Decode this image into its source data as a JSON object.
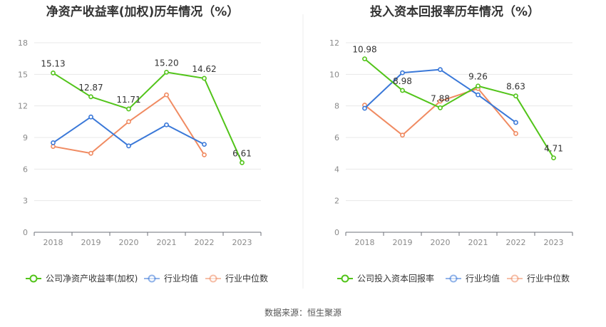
{
  "chart_data": [
    {
      "type": "line",
      "title": "净资产收益率(加权)历年情况（%）",
      "categories": [
        "2018",
        "2019",
        "2020",
        "2021",
        "2022",
        "2023"
      ],
      "ylim": [
        0,
        18
      ],
      "yticks": [
        0,
        3,
        6,
        9,
        12,
        15,
        18
      ],
      "grid": true,
      "legend_position": "bottom",
      "series": [
        {
          "name": "公司净资产收益率(加权)",
          "color": "#52c41a",
          "labeled": true,
          "values": [
            15.13,
            12.87,
            11.71,
            15.2,
            14.62,
            6.61
          ]
        },
        {
          "name": "行业均值",
          "color": "#3a78d8",
          "labeled": false,
          "values": [
            8.5,
            10.95,
            8.2,
            10.2,
            8.35,
            null
          ]
        },
        {
          "name": "行业中位数",
          "color": "#f08b62",
          "labeled": false,
          "values": [
            8.15,
            7.5,
            10.5,
            13.05,
            7.35,
            null
          ]
        }
      ]
    },
    {
      "type": "line",
      "title": "投入资本回报率历年情况（%）",
      "categories": [
        "2018",
        "2019",
        "2020",
        "2021",
        "2022",
        "2023"
      ],
      "ylim": [
        0,
        12
      ],
      "yticks": [
        0,
        2,
        4,
        6,
        8,
        10,
        12
      ],
      "grid": true,
      "legend_position": "bottom",
      "series": [
        {
          "name": "公司投入资本回报率",
          "color": "#52c41a",
          "labeled": true,
          "values": [
            10.98,
            8.98,
            7.88,
            9.26,
            8.63,
            4.71
          ]
        },
        {
          "name": "行业均值",
          "color": "#3a78d8",
          "labeled": false,
          "values": [
            7.85,
            10.1,
            10.3,
            8.7,
            6.95,
            null
          ]
        },
        {
          "name": "行业中位数",
          "color": "#f08b62",
          "labeled": false,
          "values": [
            8.05,
            6.15,
            8.3,
            9.1,
            6.25,
            null
          ]
        }
      ]
    }
  ],
  "footer": {
    "source": "数据来源：恒生聚源"
  }
}
